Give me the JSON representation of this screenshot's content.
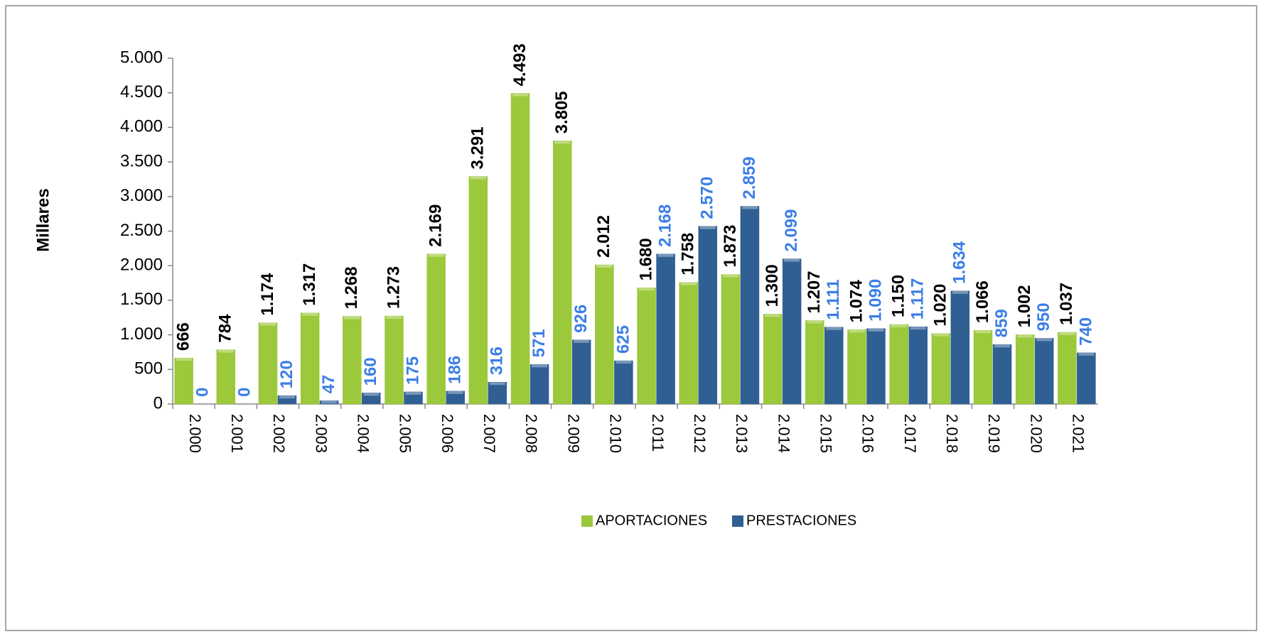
{
  "chart_data": {
    "type": "bar",
    "y_label": "Millares",
    "categories": [
      "2.000",
      "2.001",
      "2.002",
      "2.003",
      "2.004",
      "2.005",
      "2.006",
      "2.007",
      "2.008",
      "2.009",
      "2.010",
      "2.011",
      "2.012",
      "2.013",
      "2.014",
      "2.015",
      "2.016",
      "2.017",
      "2.018",
      "2.019",
      "2.020",
      "2.021"
    ],
    "series": [
      {
        "name": "APORTACIONES",
        "color": "#9cc83b",
        "label_color": "#000000",
        "values": [
          666,
          784,
          1174,
          1317,
          1268,
          1273,
          2169,
          3291,
          4493,
          3805,
          2012,
          1680,
          1758,
          1873,
          1300,
          1207,
          1074,
          1150,
          1020,
          1066,
          1002,
          1037
        ],
        "value_labels": [
          "666",
          "784",
          "1.174",
          "1.317",
          "1.268",
          "1.273",
          "2.169",
          "3.291",
          "4.493",
          "3.805",
          "2.012",
          "1.680",
          "1.758",
          "1.873",
          "1.300",
          "1.207",
          "1.074",
          "1.150",
          "1.020",
          "1.066",
          "1.002",
          "1.037"
        ]
      },
      {
        "name": "PRESTACIONES",
        "color": "#2f5f93",
        "label_color": "#3b7ee6",
        "values": [
          0,
          0,
          120,
          47,
          160,
          175,
          186,
          316,
          571,
          926,
          625,
          2168,
          2570,
          2859,
          2099,
          1111,
          1090,
          1117,
          1634,
          859,
          950,
          740
        ],
        "value_labels": [
          "0",
          "0",
          "120",
          "47",
          "160",
          "175",
          "186",
          "316",
          "571",
          "926",
          "625",
          "2.168",
          "2.570",
          "2.859",
          "2.099",
          "1.111",
          "1.090",
          "1.117",
          "1.634",
          "859",
          "950",
          "740"
        ]
      }
    ],
    "ylim": [
      0,
      5000
    ],
    "yticks": [
      0,
      500,
      {
        "value": 1000,
        "label": "1.000"
      },
      {
        "value": 1500,
        "label": "1.500"
      },
      {
        "value": 2000,
        "label": "2.000"
      },
      {
        "value": 2500,
        "label": "2.500"
      },
      {
        "value": 3000,
        "label": "3.000"
      },
      {
        "value": 3500,
        "label": "3.500"
      },
      {
        "value": 4000,
        "label": "4.000"
      },
      {
        "value": 4500,
        "label": "4.500"
      },
      {
        "value": 5000,
        "label": "5.000"
      }
    ],
    "grid": false,
    "legend": "bottom"
  }
}
